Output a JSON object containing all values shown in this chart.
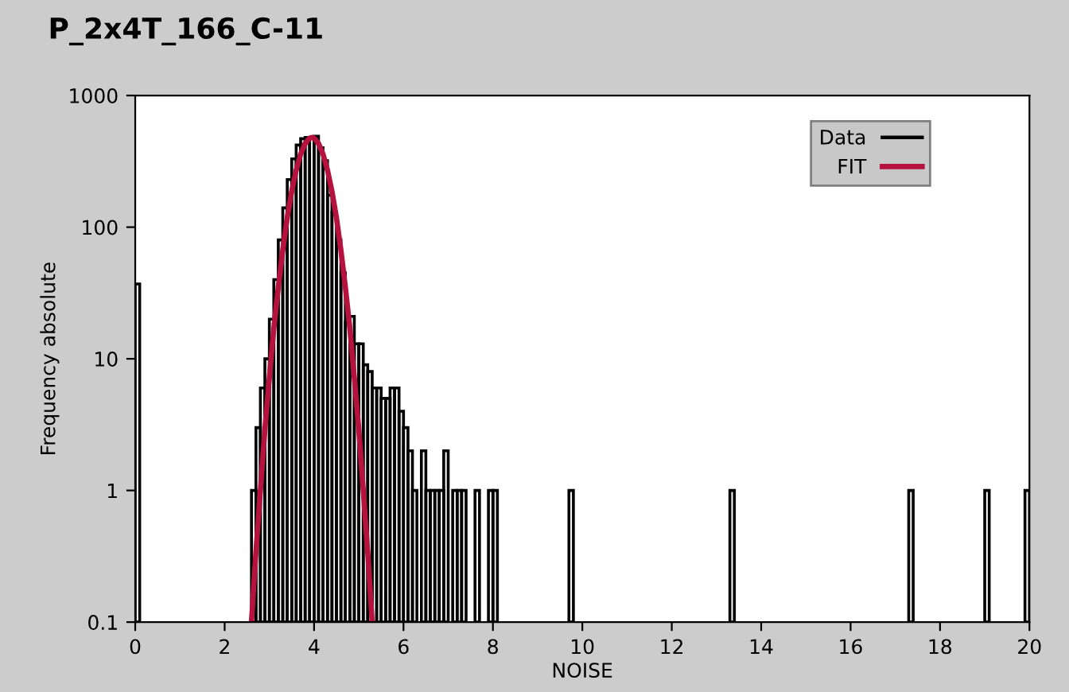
{
  "chart_data": {
    "type": "histogram",
    "title": "P_2x4T_166_C-11",
    "xlabel": "NOISE",
    "ylabel": "Frequency absolute",
    "log": "y",
    "xlim": [
      0,
      20
    ],
    "ylim": [
      0.1,
      1000
    ],
    "xticks": [
      0,
      2,
      4,
      6,
      8,
      10,
      12,
      14,
      16,
      18,
      20
    ],
    "yticks": [
      0.1,
      1,
      10,
      100,
      1000
    ],
    "grid": false,
    "legend": "top right",
    "series": [
      {
        "name": "Data",
        "color": "#000000",
        "bins": [
          0,
          0.1,
          2.6,
          2.7,
          2.8,
          2.9,
          3.0,
          3.1,
          3.2,
          3.3,
          3.4,
          3.5,
          3.6,
          3.7,
          3.8,
          3.9,
          4.0,
          4.1,
          4.2,
          4.3,
          4.4,
          4.5,
          4.6,
          4.7,
          4.8,
          4.9,
          5.0,
          5.1,
          5.2,
          5.3,
          5.4,
          5.5,
          5.6,
          5.7,
          5.8,
          5.9,
          6.0,
          6.1,
          6.2,
          6.3,
          6.4,
          6.5,
          6.6,
          6.7,
          6.8,
          6.9,
          7.0,
          7.1,
          7.2,
          7.3,
          7.4,
          7.6,
          7.7,
          7.9,
          8.0,
          8.1,
          9.7,
          9.8,
          13.3,
          13.4,
          17.3,
          17.4,
          19.0,
          19.1,
          19.9,
          20.0
        ],
        "values": [
          37,
          null,
          1,
          3,
          6,
          10,
          20,
          40,
          80,
          140,
          230,
          330,
          420,
          470,
          480,
          480,
          490,
          400,
          320,
          175,
          130,
          80,
          45,
          19,
          21,
          13,
          13,
          9,
          8,
          6,
          6,
          5,
          5,
          6,
          6,
          4,
          3,
          2,
          1,
          null,
          2,
          1,
          1,
          1,
          1,
          2,
          null,
          1,
          1,
          1,
          null,
          1,
          null,
          1,
          1,
          null,
          1,
          null,
          1,
          null,
          1,
          null,
          1,
          null,
          1
        ]
      },
      {
        "name": "FIT",
        "type": "line",
        "color": "#b5123e",
        "marker": "none",
        "line_style": "solid",
        "x": [
          2.6,
          2.7,
          2.8,
          2.9,
          3.0,
          3.1,
          3.2,
          3.3,
          3.4,
          3.5,
          3.6,
          3.7,
          3.8,
          3.9,
          3.95,
          4.0,
          4.1,
          4.2,
          4.3,
          4.4,
          4.5,
          4.6,
          4.7,
          4.8,
          4.9,
          5.0,
          5.1,
          5.2,
          5.3
        ],
        "values": [
          0.1,
          0.34,
          1.0,
          2.9,
          7.2,
          17,
          35,
          67,
          118,
          187,
          271,
          359,
          432,
          474,
          480,
          474,
          432,
          359,
          271,
          187,
          118,
          67,
          35,
          17,
          7.2,
          2.9,
          1.0,
          0.34,
          0.1
        ]
      }
    ]
  }
}
